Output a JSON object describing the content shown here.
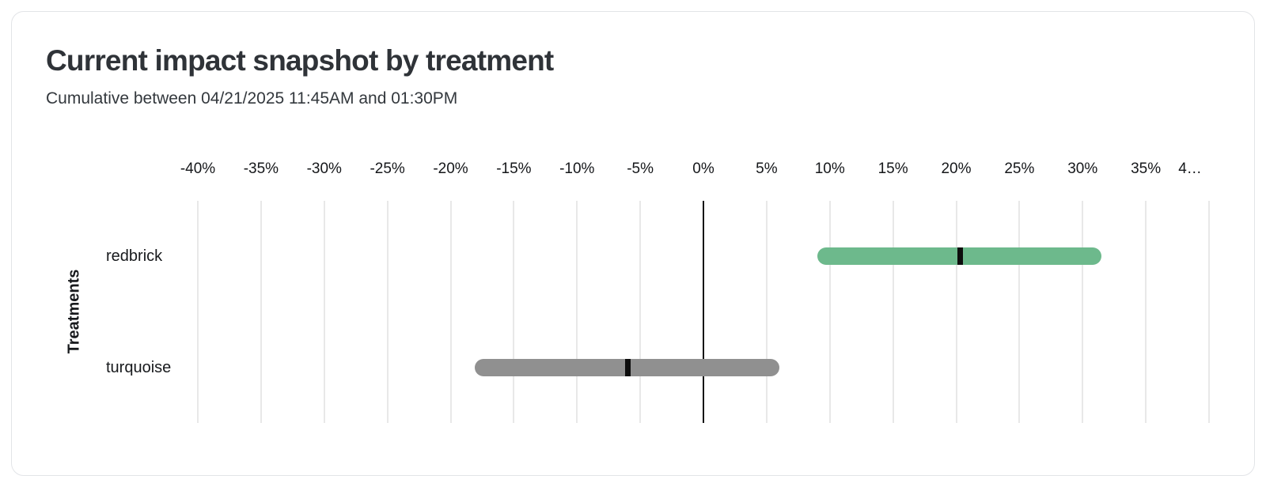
{
  "header": {
    "title": "Current impact snapshot by treatment",
    "subtitle": "Cumulative between 04/21/2025 11:45AM and 01:30PM"
  },
  "chart_data": {
    "type": "bar",
    "subtype": "horizontal-range-interval",
    "title": "Current impact snapshot by treatment",
    "subtitle": "Cumulative between 04/21/2025 11:45AM and 01:30PM",
    "xlabel": "",
    "ylabel": "Treatments",
    "grid": true,
    "x_axis": {
      "min": -40,
      "max": 40,
      "step": 5,
      "unit": "%",
      "tick_labels": [
        "-40%",
        "-35%",
        "-30%",
        "-25%",
        "-20%",
        "-15%",
        "-10%",
        "-5%",
        "0%",
        "5%",
        "10%",
        "15%",
        "20%",
        "25%",
        "30%",
        "35%",
        "4…"
      ],
      "zero_line": true
    },
    "categories": [
      "redbrick",
      "turquoise"
    ],
    "series": [
      {
        "name": "redbrick",
        "low": 9.0,
        "high": 31.5,
        "estimate": 20.3,
        "color": "#6db98c"
      },
      {
        "name": "turquoise",
        "low": -18.1,
        "high": 6.0,
        "estimate": -6.0,
        "color": "#909090"
      }
    ],
    "marker_color": "#0d0d0d"
  },
  "colors": {
    "redbrick_bar": "#6db98c",
    "turquoise_bar": "#909090",
    "point_marker": "#0d0d0d",
    "grid_line": "#e8e8e8",
    "zero_line": "#141414",
    "card_border": "#e2e4e7"
  }
}
